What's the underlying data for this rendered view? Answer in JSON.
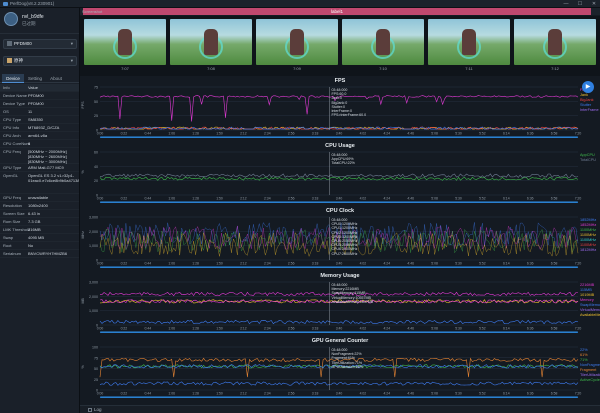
{
  "window": {
    "title": "PerfDog(v8.2.230901)",
    "minimize": "—",
    "maximize": "☐",
    "close": "✕"
  },
  "user": {
    "name": "nvl_b9dfe",
    "status": "已过期",
    "status_icon": "info-icon"
  },
  "device_select": {
    "value": "PFDM00",
    "wifi_icon": "wifi-icon"
  },
  "app_select": {
    "value": "原神"
  },
  "side_tabs": [
    "Device",
    "Setting",
    "About"
  ],
  "info": {
    "header": [
      "Info",
      "Value"
    ],
    "rows": [
      [
        "Device Name",
        "PFDM00"
      ],
      [
        "Device Type",
        "PFDM00"
      ],
      [
        "OS",
        "11"
      ],
      [
        "CPU Type",
        "SM8350"
      ],
      [
        "CPU Info",
        "MT6893Z_D/CZA"
      ],
      [
        "CPU Arch",
        "arm64-v8a"
      ],
      [
        "CPU CoreNum",
        "8"
      ],
      [
        "CPU Freq",
        "[500MHz ~ 2000MHz] [830MHz ~ 2600MHz] [830MHz ~ 3000MHz]"
      ],
      [
        "GPU Type",
        "ARM Mali-G77 MC9"
      ],
      [
        "OpenGL",
        "OpenGL ES 3.2 v1.r32p1-01eac0.e7c6ce8b9b0a47138113a3bb9b0a4713"
      ],
      [
        "GPU Freq",
        "unavailable"
      ],
      [
        "Resolution",
        "1080x2400"
      ],
      [
        "Screen Size",
        "6.43 in"
      ],
      [
        "Rom Size",
        "7.3 GB"
      ],
      [
        "LMK Threshold",
        "216MB"
      ],
      [
        "Swap",
        "4095 MB"
      ],
      [
        "Root",
        "No"
      ],
      [
        "Serialnum",
        "BNVCWRYH7HMZB6"
      ]
    ]
  },
  "main_tab": {
    "label": "label1",
    "small": "Screenshot"
  },
  "thumbnails": [
    "7:07",
    "7:08",
    "7:09",
    "7:10",
    "7:11",
    "7:12"
  ],
  "time_ticks": [
    "0:00",
    "0:22",
    "0:44",
    "1:06",
    "1:28",
    "1:50",
    "2:12",
    "2:34",
    "2:56",
    "3:18",
    "3:40",
    "4:02",
    "4:24",
    "4:46",
    "5:08",
    "5:30",
    "5:52",
    "6:14",
    "6:36",
    "6:58",
    "7:20"
  ],
  "charts": [
    {
      "title": "FPS",
      "ylabel": "FPS",
      "yticks": [
        "75",
        "50",
        "25",
        "0"
      ],
      "overlay": [
        "03:48:000",
        "FPS:60.0",
        "Jank:0",
        "BigJank:0",
        "Stutter:0",
        "InterFrame:0",
        "FPS>InterFrame:60.0"
      ],
      "legend": [
        {
          "label": "FPS",
          "color": "#e23ad6"
        },
        {
          "label": "Jank",
          "color": "#f0c02e"
        },
        {
          "label": "BigJank",
          "color": "#ee4040"
        },
        {
          "label": "Stutter",
          "color": "#3e7cf2"
        },
        {
          "label": "InterFrame",
          "color": "#9e6df0"
        }
      ]
    },
    {
      "title": "CPU Usage",
      "ylabel": "%",
      "yticks": [
        "60",
        "40",
        "20",
        "0"
      ],
      "overlay": [
        "03:48:000",
        "AppCPU:69%",
        "TotalCPU:22%"
      ],
      "legend": [
        {
          "label": "AppCPU",
          "color": "#3fbc4c"
        },
        {
          "label": "TotalCPU",
          "color": "#6f7c93"
        }
      ]
    },
    {
      "title": "CPU Clock",
      "ylabel": "MHz",
      "yticks": [
        "3,000",
        "2,000",
        "1,000",
        "0"
      ],
      "overlay": [
        "03:48:000",
        "CPU0:1200MHz",
        "CPU1:1200MHz",
        "CPU2:1200MHz",
        "CPU3:1200MHz",
        "CPU4:2000MHz",
        "CPU5:2000MHz",
        "CPU6:2000MHz",
        "CPU7:2600MHz"
      ],
      "legend": [
        {
          "label": "1852MHz",
          "color": "#3e7cf2"
        },
        {
          "label": "1852MHz",
          "color": "#e23ad6"
        },
        {
          "label": "1100MHz",
          "color": "#3fbc4c"
        },
        {
          "label": "1100MHz",
          "color": "#f0c02e"
        },
        {
          "label": "1100MHz",
          "color": "#2fd6d6"
        },
        {
          "label": "1100MHz",
          "color": "#ee4040"
        },
        {
          "label": "1812MHz",
          "color": "#9e6df0"
        }
      ]
    },
    {
      "title": "Memory Usage",
      "ylabel": "MB",
      "yticks": [
        "3,000",
        "2,000",
        "1,000",
        "0"
      ],
      "overlay": [
        "03:48:000",
        "Memory:2216MB",
        "SwapMemory:115MB",
        "VirtualMemory:10557MB",
        "AvailableMemory:1637MB"
      ],
      "legend": [
        {
          "label": "2216MB",
          "color": "#e23ad6"
        },
        {
          "label": "115MB",
          "color": "#3e7cf2"
        },
        {
          "label": "1019MB",
          "color": "#f0c02e"
        },
        {
          "label": "Memory",
          "color": "#e23ad6"
        },
        {
          "label": "SwapMemory",
          "color": "#3e7cf2"
        },
        {
          "label": "VirtualMemory",
          "color": "#9e6df0"
        },
        {
          "label": "AvailableMemory",
          "color": "#f0c02e"
        }
      ]
    },
    {
      "title": "GPU General Counter",
      "ylabel": "%",
      "yticks": [
        "100",
        "75",
        "50",
        "25",
        "0"
      ],
      "overlay": [
        "03:48:000",
        "NonFragment:22%",
        "Fragment:61%",
        "TilerUtilization:71%",
        "GPUUtilization:68%"
      ],
      "legend": [
        {
          "label": "22%",
          "color": "#3e7cf2"
        },
        {
          "label": "61%",
          "color": "#e88533"
        },
        {
          "label": "71%",
          "color": "#3fbc4c"
        },
        {
          "label": "NonFragment",
          "color": "#3e7cf2"
        },
        {
          "label": "Fragment",
          "color": "#e88533"
        },
        {
          "label": "TilerUtilization",
          "color": "#9e6df0"
        },
        {
          "label": "ActiveCycle",
          "color": "#3fbc4c"
        }
      ]
    }
  ],
  "bottom": {
    "log_label": "Log",
    "help_icon": "help-icon"
  },
  "play_button": "▶"
}
